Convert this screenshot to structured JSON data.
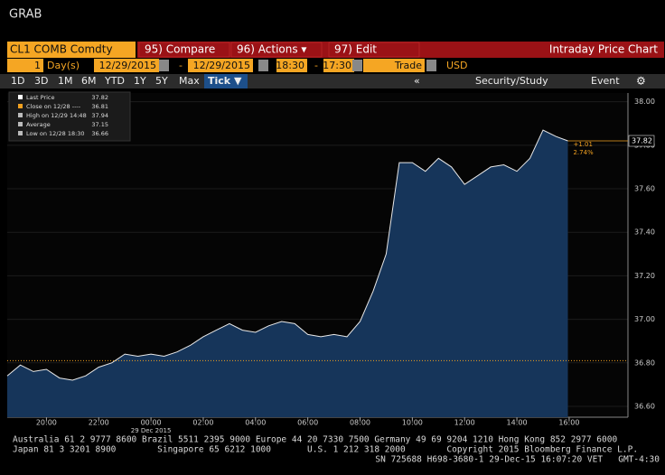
{
  "window_title": "GRAB",
  "toolbar": {
    "security": "CL1 COMB Comdty",
    "buttons": [
      "95) Compare",
      "96) Actions ▾",
      "97) Edit"
    ],
    "chart_name": "Intraday Price Chart"
  },
  "params": {
    "period": "1",
    "period_unit": "Day(s)",
    "start_date": "12/29/2015",
    "dash1": "-",
    "end_date": "12/29/2015",
    "start_time": "18:30",
    "dash2": "-",
    "end_time": "17:30",
    "field": "Trade",
    "currency": "USD"
  },
  "ranges": [
    "1D",
    "3D",
    "1M",
    "6M",
    "YTD",
    "1Y",
    "5Y",
    "Max",
    "Tick ▼"
  ],
  "tools": [
    "«",
    "Security/Study",
    "Event"
  ],
  "chart_data": {
    "type": "line",
    "x": [
      18.5,
      19,
      19.5,
      20,
      20.5,
      21,
      21.5,
      22,
      22.5,
      23,
      23.5,
      24,
      24.5,
      25,
      25.5,
      26,
      26.5,
      27,
      27.5,
      28,
      28.5,
      29,
      29.5,
      30,
      30.5,
      31,
      31.5,
      32,
      32.5,
      33,
      33.5,
      34,
      34.5,
      35,
      35.5,
      36,
      36.5,
      37,
      37.5,
      38,
      38.5,
      39,
      39.5,
      39.95
    ],
    "series": [
      {
        "name": "Last Price",
        "color": "#e8e8e8",
        "values": [
          36.74,
          36.79,
          36.76,
          36.77,
          36.73,
          36.72,
          36.74,
          36.78,
          36.8,
          36.84,
          36.83,
          36.84,
          36.83,
          36.85,
          36.88,
          36.92,
          36.95,
          36.98,
          36.95,
          36.94,
          36.97,
          36.99,
          36.98,
          36.93,
          36.92,
          36.93,
          36.92,
          36.99,
          37.13,
          37.3,
          37.72,
          37.72,
          37.68,
          37.74,
          37.7,
          37.62,
          37.66,
          37.7,
          37.71,
          37.68,
          37.74,
          37.87,
          37.84,
          37.82
        ]
      }
    ],
    "last_price": 37.82,
    "stats": [
      {
        "label": "Close on 12/28 ----",
        "value": 36.81
      },
      {
        "label": "High on 12/29 14:48",
        "value": 37.94
      },
      {
        "label": "Average",
        "value": 37.15
      },
      {
        "label": "Low on 12/28 18:30",
        "value": 36.66
      }
    ],
    "change": "+1.01",
    "change_pct": "2.74%",
    "date_label": "29 Dec 2015",
    "xlim": [
      18.5,
      42.25
    ],
    "xticks": [
      {
        "value": 20,
        "label": "20:00"
      },
      {
        "value": 22,
        "label": "22:00"
      },
      {
        "value": 24,
        "label": "00:00"
      },
      {
        "value": 26,
        "label": "02:00"
      },
      {
        "value": 28,
        "label": "04:00"
      },
      {
        "value": 30,
        "label": "06:00"
      },
      {
        "value": 32,
        "label": "08:00"
      },
      {
        "value": 34,
        "label": "10:00"
      },
      {
        "value": 36,
        "label": "12:00"
      },
      {
        "value": 38,
        "label": "14:00"
      },
      {
        "value": 40,
        "label": "16:00"
      }
    ],
    "ylim": [
      36.55,
      38.04
    ],
    "yticks": [
      {
        "value": 36.6,
        "label": "36.60"
      },
      {
        "value": 36.8,
        "label": "36.80"
      },
      {
        "value": 37,
        "label": "37.00"
      },
      {
        "value": 37.2,
        "label": "37.20"
      },
      {
        "value": 37.4,
        "label": "37.40"
      },
      {
        "value": 37.6,
        "label": "37.60"
      },
      {
        "value": 37.8,
        "label": "37.80"
      },
      {
        "value": 38,
        "label": "38.00"
      }
    ],
    "area_color": "#16355a",
    "ref_color": "#f0a020"
  },
  "footer": [
    "Australia 61 2 9777 8600 Brazil 5511 2395 9000 Europe 44 20 7330 7500 Germany 49 69 9204 1210 Hong Kong 852 2977 6000",
    "Japan 81 3 3201 8900        Singapore 65 6212 1000       U.S. 1 212 318 2000        Copyright 2015 Bloomberg Finance L.P.",
    "SN 725688 H698-3680-1 29-Dec-15 16:07:20 VET   GMT-4:30"
  ]
}
